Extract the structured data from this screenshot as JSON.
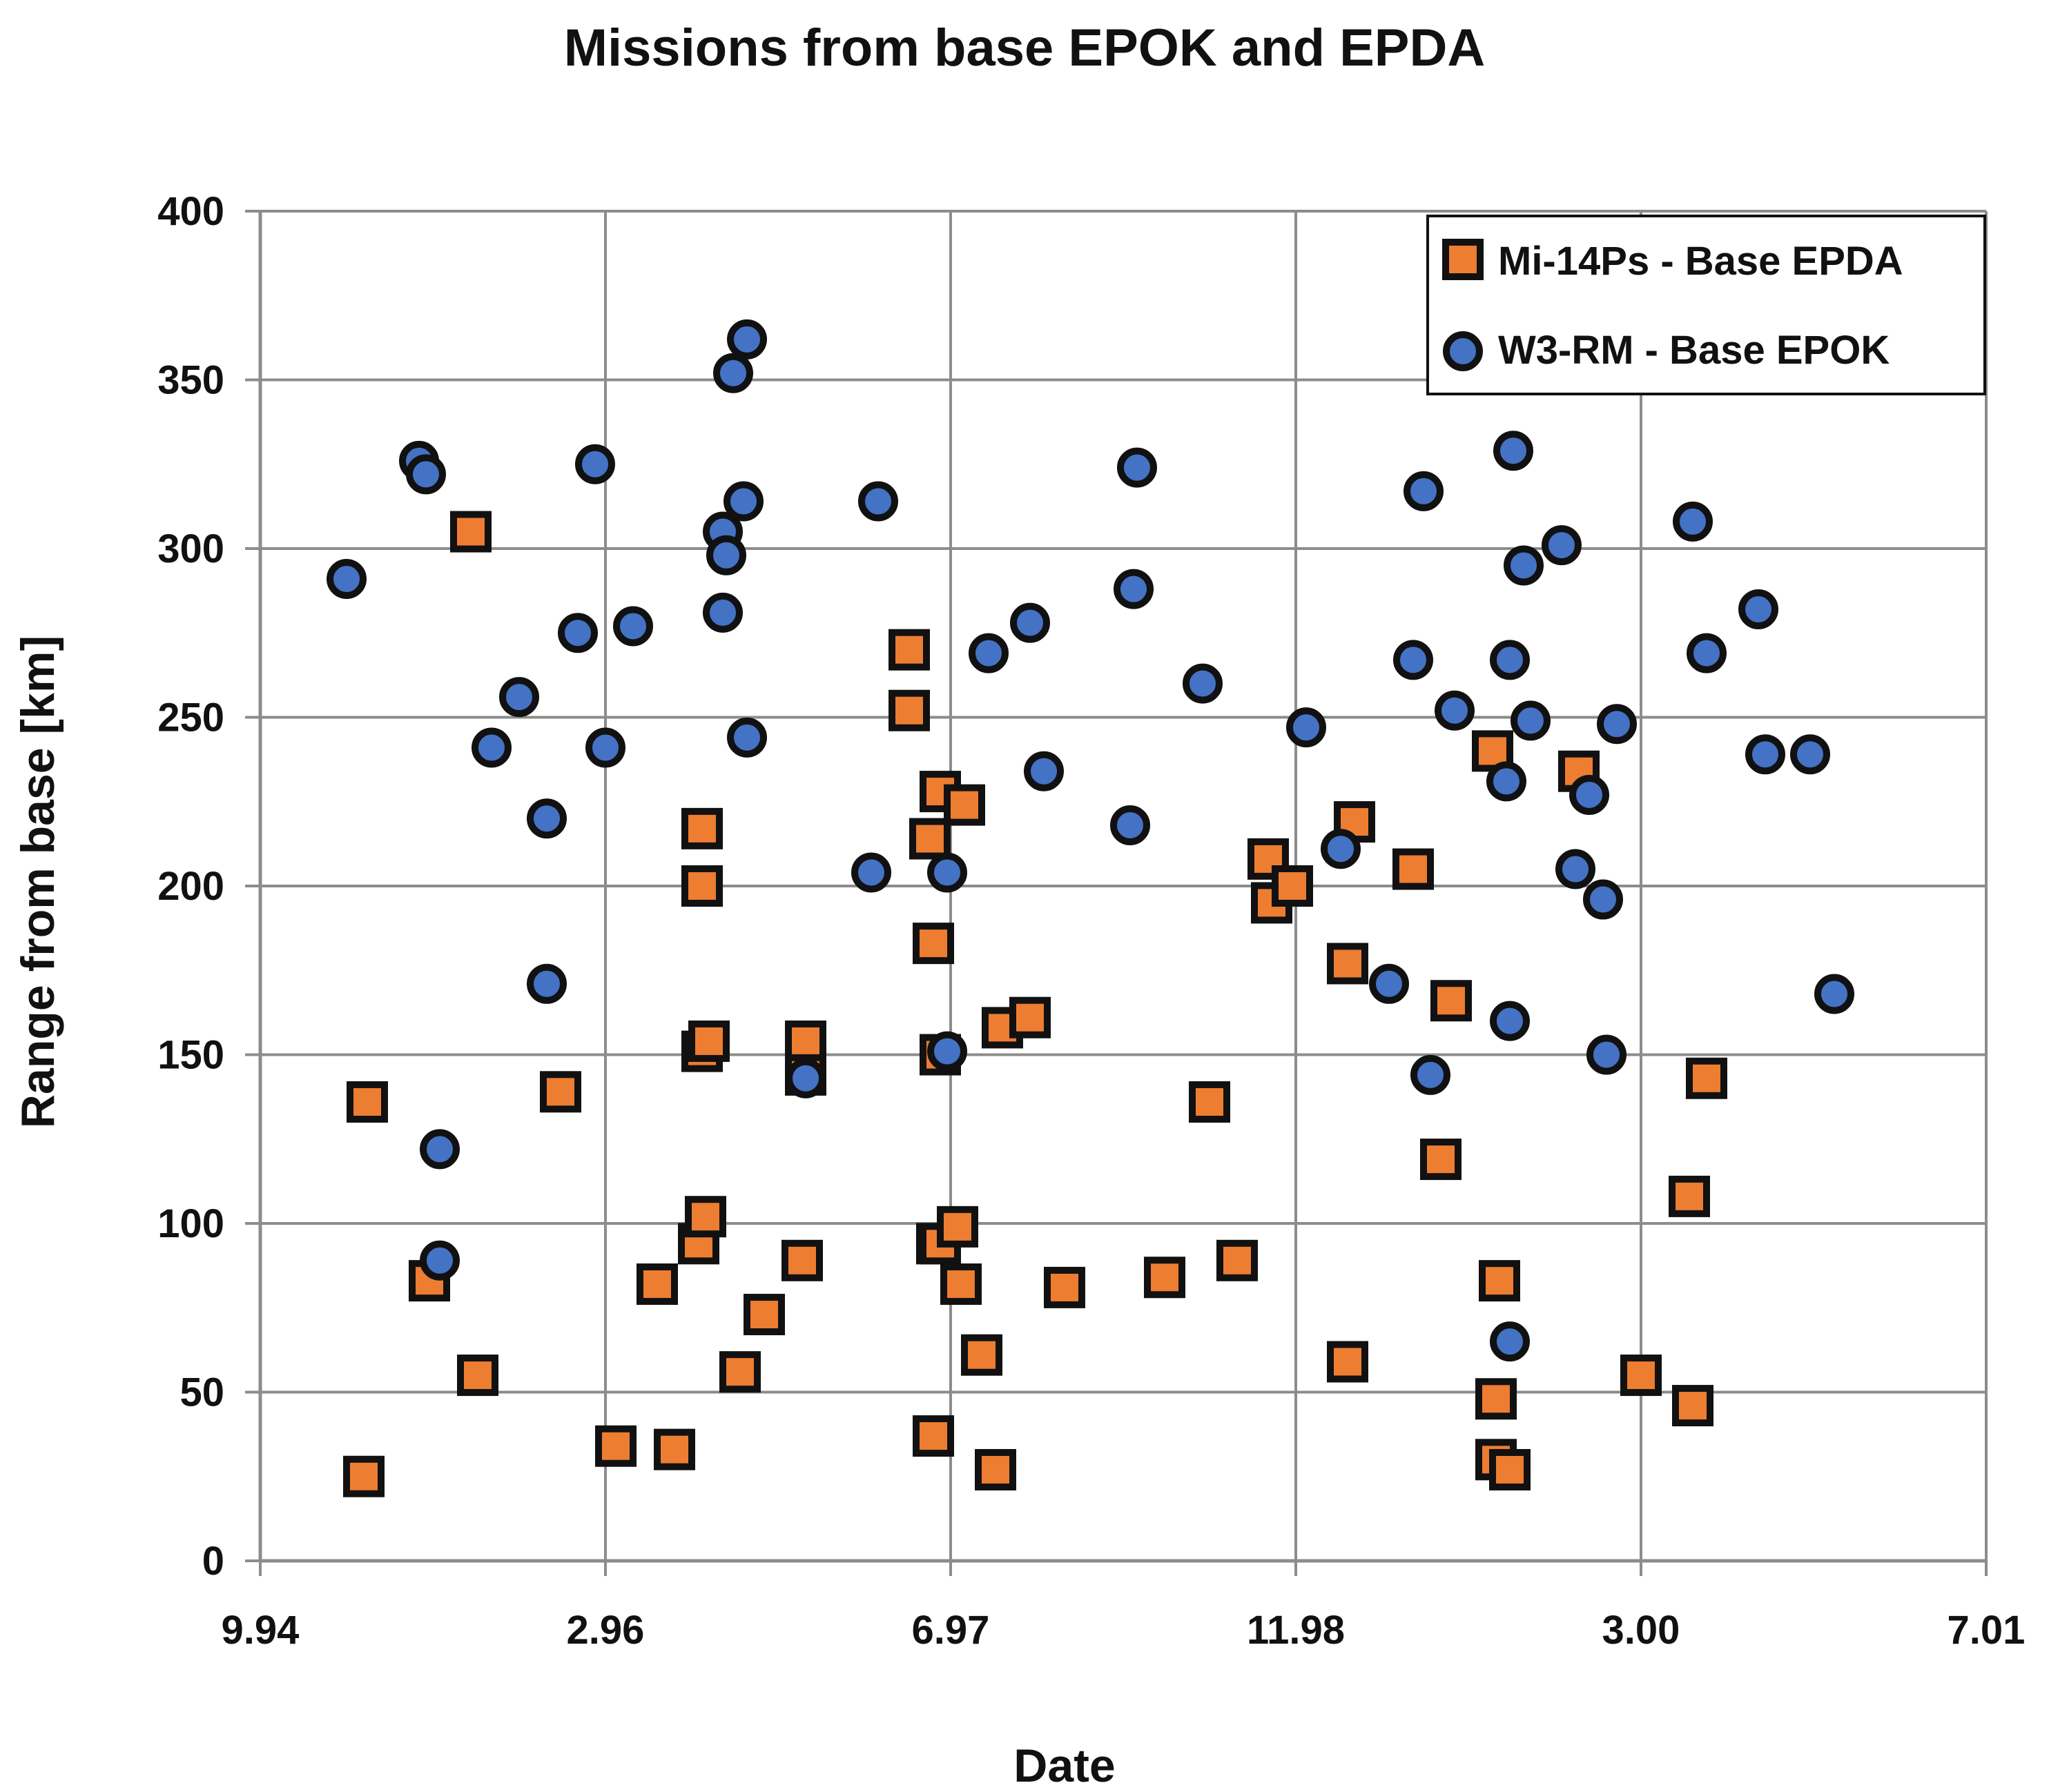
{
  "chart_data": {
    "type": "scatter",
    "title": "Missions from base EPOK and EPDA",
    "xlabel": "Date",
    "ylabel": "Range from base [km]",
    "x_tick_labels": [
      "9.94",
      "2.96",
      "6.97",
      "11.98",
      "3.00",
      "7.01"
    ],
    "xlim": [
      0,
      5
    ],
    "ylim": [
      0,
      400
    ],
    "y_ticks": [
      0,
      50,
      100,
      150,
      200,
      250,
      300,
      350,
      400
    ],
    "grid": true,
    "legend_position": "top-right",
    "colors": {
      "orange": "#ED7D31",
      "blue": "#4472C4",
      "outline": "#111111",
      "grid": "#8c8c8c"
    },
    "series": [
      {
        "name": "Mi-14Ps - Base EPDA",
        "marker": "square",
        "color": "#ED7D31",
        "points": [
          [
            0.3,
            25
          ],
          [
            0.31,
            136
          ],
          [
            0.49,
            83
          ],
          [
            0.61,
            305
          ],
          [
            0.63,
            55
          ],
          [
            0.87,
            139
          ],
          [
            1.03,
            34
          ],
          [
            1.15,
            82
          ],
          [
            1.2,
            33
          ],
          [
            1.27,
            94
          ],
          [
            1.28,
            151
          ],
          [
            1.28,
            200
          ],
          [
            1.28,
            217
          ],
          [
            1.29,
            102
          ],
          [
            1.3,
            154
          ],
          [
            1.39,
            56
          ],
          [
            1.46,
            73
          ],
          [
            1.57,
            89
          ],
          [
            1.58,
            154
          ],
          [
            1.58,
            144
          ],
          [
            1.88,
            252
          ],
          [
            1.88,
            270
          ],
          [
            1.94,
            214
          ],
          [
            1.95,
            183
          ],
          [
            1.95,
            37
          ],
          [
            1.97,
            150
          ],
          [
            1.97,
            228
          ],
          [
            1.96,
            94
          ],
          [
            1.97,
            94
          ],
          [
            2.02,
            99
          ],
          [
            2.03,
            82
          ],
          [
            2.04,
            224
          ],
          [
            2.09,
            61
          ],
          [
            2.13,
            27
          ],
          [
            2.15,
            158
          ],
          [
            2.23,
            161
          ],
          [
            2.33,
            81
          ],
          [
            2.62,
            84
          ],
          [
            2.75,
            136
          ],
          [
            2.83,
            89
          ],
          [
            2.92,
            208
          ],
          [
            2.93,
            195
          ],
          [
            2.99,
            200
          ],
          [
            3.15,
            177
          ],
          [
            3.15,
            59
          ],
          [
            3.17,
            219
          ],
          [
            3.34,
            205
          ],
          [
            3.42,
            119
          ],
          [
            3.45,
            166
          ],
          [
            3.57,
            240
          ],
          [
            3.58,
            48
          ],
          [
            3.58,
            30
          ],
          [
            3.59,
            83
          ],
          [
            3.62,
            27
          ],
          [
            3.82,
            234
          ],
          [
            4.0,
            55
          ],
          [
            4.14,
            108
          ],
          [
            4.15,
            46
          ],
          [
            4.19,
            143
          ]
        ]
      },
      {
        "name": "W3-RM - Base EPOK",
        "marker": "circle",
        "color": "#4472C4",
        "points": [
          [
            0.25,
            291
          ],
          [
            0.46,
            326
          ],
          [
            0.48,
            322
          ],
          [
            0.52,
            122
          ],
          [
            0.52,
            89
          ],
          [
            0.67,
            241
          ],
          [
            0.75,
            256
          ],
          [
            0.83,
            220
          ],
          [
            0.83,
            171
          ],
          [
            0.92,
            275
          ],
          [
            0.97,
            325
          ],
          [
            1.0,
            241
          ],
          [
            1.08,
            277
          ],
          [
            1.34,
            305
          ],
          [
            1.35,
            298
          ],
          [
            1.34,
            281
          ],
          [
            1.37,
            352
          ],
          [
            1.4,
            314
          ],
          [
            1.41,
            362
          ],
          [
            1.41,
            244
          ],
          [
            1.58,
            143
          ],
          [
            1.77,
            204
          ],
          [
            1.79,
            314
          ],
          [
            1.99,
            204
          ],
          [
            1.99,
            151
          ],
          [
            2.11,
            269
          ],
          [
            2.23,
            278
          ],
          [
            2.27,
            234
          ],
          [
            2.52,
            218
          ],
          [
            2.53,
            288
          ],
          [
            2.54,
            324
          ],
          [
            2.73,
            260
          ],
          [
            3.03,
            247
          ],
          [
            3.13,
            211
          ],
          [
            3.27,
            171
          ],
          [
            3.34,
            267
          ],
          [
            3.37,
            317
          ],
          [
            3.39,
            144
          ],
          [
            3.46,
            252
          ],
          [
            3.61,
            231
          ],
          [
            3.62,
            267
          ],
          [
            3.62,
            160
          ],
          [
            3.63,
            329
          ],
          [
            3.62,
            65
          ],
          [
            3.66,
            295
          ],
          [
            3.68,
            249
          ],
          [
            3.77,
            301
          ],
          [
            3.81,
            205
          ],
          [
            3.85,
            227
          ],
          [
            3.89,
            196
          ],
          [
            3.9,
            150
          ],
          [
            3.93,
            248
          ],
          [
            4.15,
            308
          ],
          [
            4.19,
            269
          ],
          [
            4.34,
            282
          ],
          [
            4.36,
            239
          ],
          [
            4.49,
            239
          ],
          [
            4.56,
            168
          ]
        ]
      }
    ]
  }
}
